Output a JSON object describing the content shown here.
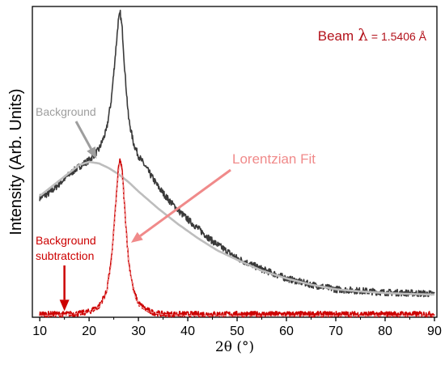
{
  "chart_data": {
    "type": "line",
    "title": "",
    "xlabel": "2θ (°)",
    "ylabel": "Intensity (Arb. Units)",
    "xlim": [
      8.5,
      90.5
    ],
    "ylim": [
      0,
      100
    ],
    "xticks": [
      10,
      20,
      30,
      40,
      50,
      60,
      70,
      80,
      90
    ],
    "grid": false,
    "legend": "none",
    "y_tick_labels_shown": false,
    "series": [
      {
        "name": "",
        "color": "#3a3a3a",
        "x": [
          10,
          12,
          14,
          16,
          18,
          20,
          22,
          23.5,
          24.5,
          25.3,
          25.9,
          26.3,
          26.7,
          27.3,
          28,
          29,
          30,
          32,
          34,
          36,
          38,
          40,
          45,
          50,
          55,
          60,
          65,
          70,
          75,
          80,
          85,
          90
        ],
        "y": [
          38.5,
          40,
          43,
          46,
          48.5,
          50.5,
          54,
          60,
          70,
          84,
          95,
          98,
          93,
          78,
          64,
          56,
          52,
          47,
          42,
          38,
          34.5,
          31.5,
          24.5,
          19,
          15.5,
          12.5,
          10.5,
          9,
          8.5,
          8,
          7.8,
          7.5
        ]
      },
      {
        "name": "Background",
        "color": "#bdbdbd",
        "x": [
          10,
          12,
          14,
          16,
          18,
          20,
          22,
          24,
          26,
          28,
          30,
          34,
          38,
          42,
          46,
          50,
          55,
          60,
          65,
          70,
          75,
          80,
          85,
          90
        ],
        "y": [
          39,
          41.5,
          44,
          46.5,
          49,
          50,
          49.5,
          48,
          46,
          43.5,
          40.5,
          35,
          30,
          25.5,
          21.5,
          18.5,
          15,
          12.5,
          10.5,
          9,
          8.3,
          7.8,
          7.5,
          7.3
        ]
      },
      {
        "name": "Background subtratction",
        "color": "#cc0000",
        "x": [
          10,
          15,
          18,
          20,
          22,
          23.5,
          24.5,
          25.3,
          25.9,
          26.3,
          26.7,
          27.3,
          28,
          29,
          30,
          31.5,
          33,
          35,
          40,
          50,
          60,
          70,
          80,
          90
        ],
        "y": [
          1,
          1,
          1.2,
          1.8,
          3.5,
          8,
          18,
          34,
          47,
          51,
          47,
          33,
          18,
          8.5,
          4.5,
          2.5,
          1.5,
          1,
          1,
          1,
          1,
          1,
          1,
          1
        ]
      },
      {
        "name": "Lorentzian Fit",
        "color": "#f4a3a3",
        "x": [
          10,
          15,
          18,
          20,
          22,
          23.5,
          24.5,
          25.3,
          25.9,
          26.3,
          26.7,
          27.3,
          28,
          29,
          30,
          31.5,
          33,
          35,
          40,
          50,
          60,
          70,
          80,
          90
        ],
        "y": [
          0.5,
          0.8,
          1.2,
          1.7,
          3.3,
          7.5,
          17,
          33,
          46,
          50,
          46,
          32,
          17,
          8,
          4.2,
          2.3,
          1.4,
          0.9,
          0.6,
          0.5,
          0.5,
          0.5,
          0.5,
          0.5
        ]
      }
    ],
    "annotations": [
      {
        "id": "beam",
        "label": "Beam",
        "symbol": "λ",
        "value": "= 1.5406 Å",
        "position": "top-right",
        "color": "#b3121b"
      },
      {
        "id": "background",
        "text": "Background",
        "color": "#9e9e9e",
        "arrow_to": [
          21.5,
          51
        ]
      },
      {
        "id": "lorentz",
        "text": "Lorentzian Fit",
        "color": "#f08a8a",
        "arrow_to": [
          28.5,
          24
        ]
      },
      {
        "id": "bgsub",
        "lines": [
          "Background",
          "subtratction"
        ],
        "color": "#cc0000",
        "arrow_to": [
          15,
          2
        ]
      }
    ]
  }
}
